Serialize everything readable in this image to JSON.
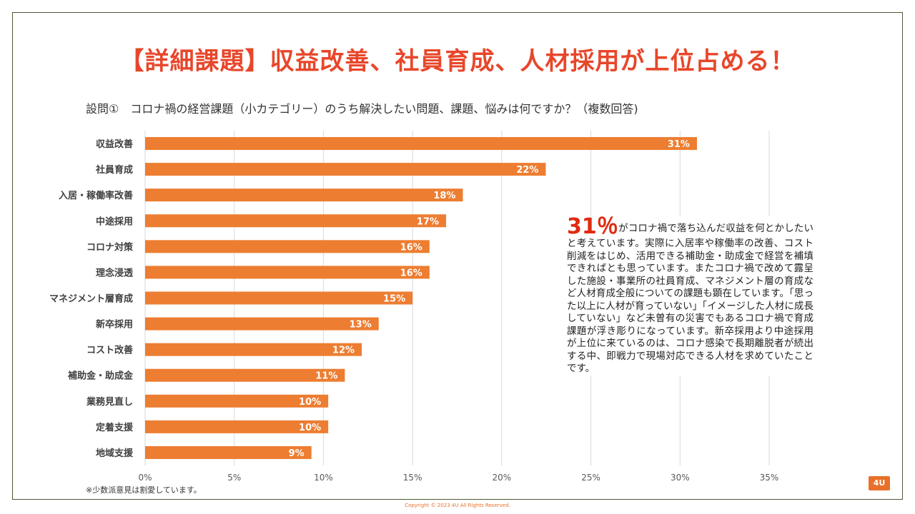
{
  "title": "【詳細課題】収益改善、社員育成、人材採用が上位占める！",
  "subtitle": "設問①　コロナ禍の経営課題（小カテゴリー）のうち解決したい問題、課題、悩みは何ですか？（複数回答)",
  "chart_data": {
    "type": "bar",
    "orientation": "horizontal",
    "categories": [
      "収益改善",
      "社員育成",
      "入居・稼働率改善",
      "中途採用",
      "コロナ対策",
      "理念浸透",
      "マネジメント層育成",
      "新卒採用",
      "コスト改善",
      "補助金・助成金",
      "業務見直し",
      "定着支援",
      "地域支援"
    ],
    "values": [
      31,
      22,
      18,
      17,
      16,
      16,
      15,
      13,
      12,
      11,
      10,
      10,
      9
    ],
    "value_labels": [
      "31%",
      "22%",
      "18%",
      "17%",
      "16%",
      "16%",
      "15%",
      "13%",
      "12%",
      "11%",
      "10%",
      "10%",
      "9%"
    ],
    "values_precise": [
      30.95,
      22.47,
      17.82,
      16.88,
      15.95,
      15.95,
      15.0,
      13.1,
      12.15,
      11.2,
      10.27,
      10.27,
      9.33
    ],
    "xlim": [
      0,
      35
    ],
    "xticks": [
      0,
      5,
      10,
      15,
      20,
      25,
      30,
      35
    ],
    "xtick_labels": [
      "0%",
      "5%",
      "10%",
      "15%",
      "20%",
      "25%",
      "30%",
      "35%"
    ],
    "bar_color": "#ed7d31",
    "gridlines": true
  },
  "annotation": {
    "highlight": "31％",
    "text": "がコロナ禍で落ち込んだ収益を何とかしたいと考えています。実際に入居率や稼働率の改善、コスト削減をはじめ、活用できる補助金・助成金で経営を補填できればとも思っています。またコロナ禍で改めて露呈した施設・事業所の社員育成、マネジメント層の育成など人材育成全般についての課題も顕在しています。「思った以上に人材が育っていない」「イメージした人材に成長していない」など未曽有の災害でもあるコロナ禍で育成課題が浮き彫りになっています。新卒採用より中途採用が上位に来ているのは、コロナ感染で長期離脱者が続出する中、即戦力で現場対応できる人材を求めていたことです。"
  },
  "note": "※少数派意見は割愛しています。",
  "badge": "4U",
  "copyright": "Copyright © 2023 4U All Rights Reserved."
}
